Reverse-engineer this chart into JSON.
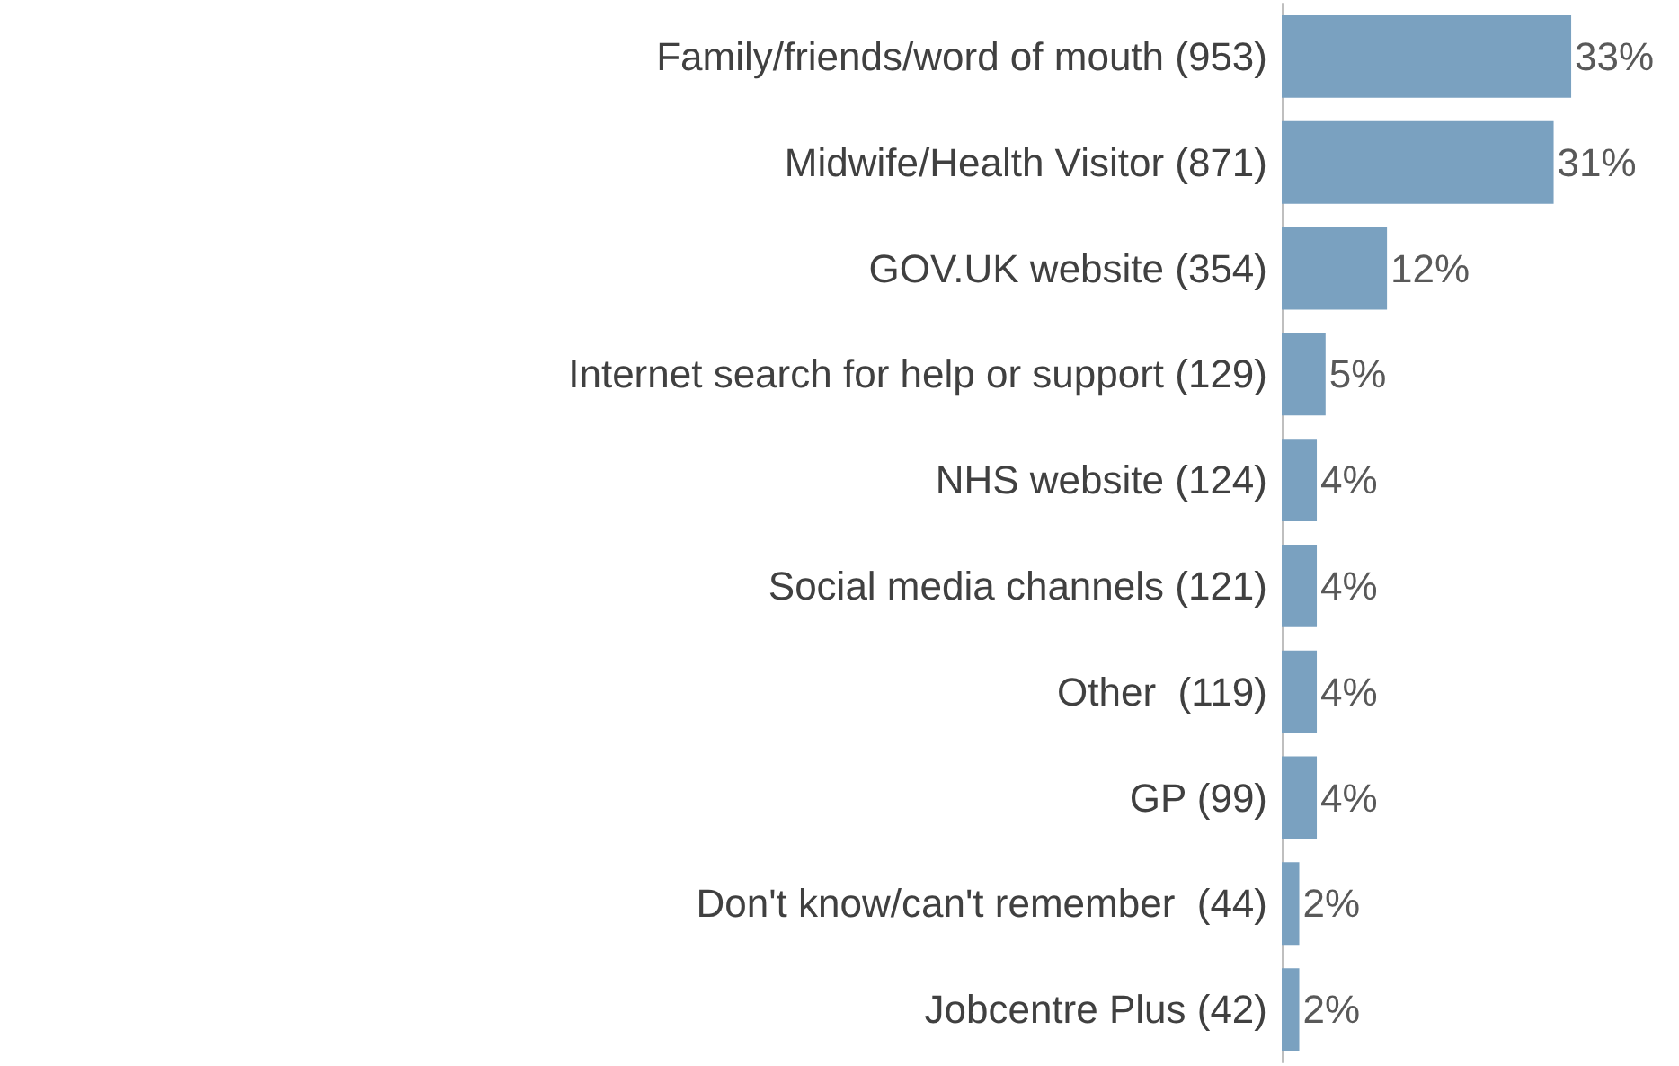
{
  "chart_data": {
    "type": "bar",
    "orientation": "horizontal",
    "categories": [
      "Family/friends/word of mouth (953)",
      "Midwife/Health Visitor (871)",
      "GOV.UK website (354)",
      "Internet search for help or support (129)",
      "NHS website (124)",
      "Social media channels (121)",
      "Other  (119)",
      "GP (99)",
      "Don't know/can't remember  (44)",
      "Jobcentre Plus (42)"
    ],
    "values": [
      33,
      31,
      12,
      5,
      4,
      4,
      4,
      4,
      2,
      2
    ],
    "value_labels": [
      "33%",
      "31%",
      "12%",
      "5%",
      "4%",
      "4%",
      "4%",
      "4%",
      "2%",
      "2%"
    ],
    "color": "#7aa1c0"
  }
}
